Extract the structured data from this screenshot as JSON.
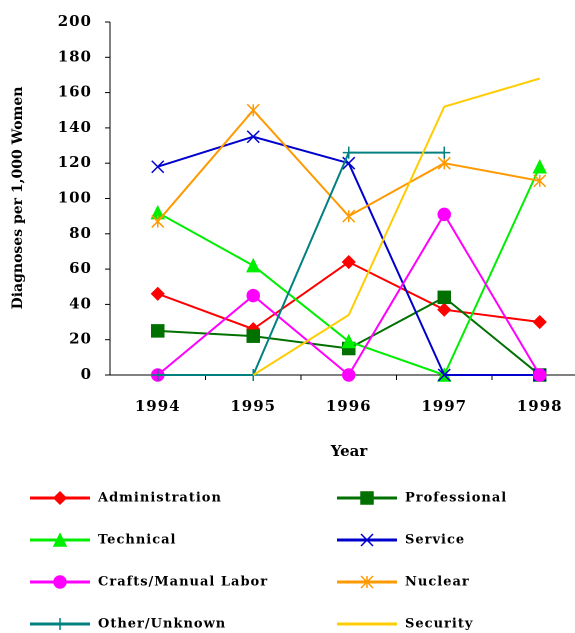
{
  "chart_data": {
    "type": "line",
    "x_label": "Year",
    "y_label": "Diagnoses per 1,000 Women",
    "categories": [
      "1994",
      "1995",
      "1996",
      "1997",
      "1998"
    ],
    "ylim": [
      0,
      200
    ],
    "yticks": [
      0,
      20,
      40,
      60,
      80,
      100,
      120,
      140,
      160,
      180,
      200
    ],
    "grid": false,
    "legend": "bottom",
    "series": [
      {
        "name": "Administration",
        "color": "#ff0000",
        "marker": "diamond",
        "values": [
          46,
          26,
          64,
          37,
          30
        ]
      },
      {
        "name": "Professional",
        "color": "#007000",
        "marker": "square",
        "values": [
          25,
          22,
          15,
          44,
          0
        ]
      },
      {
        "name": "Technical",
        "color": "#00ee00",
        "marker": "triangle",
        "values": [
          92,
          62,
          19,
          0,
          118
        ]
      },
      {
        "name": "Service",
        "color": "#0000cc",
        "marker": "x",
        "values": [
          118,
          135,
          120,
          0,
          0
        ]
      },
      {
        "name": "Crafts/Manual Labor",
        "color": "#ff00ff",
        "marker": "circle",
        "values": [
          0,
          45,
          0,
          91,
          0
        ]
      },
      {
        "name": "Nuclear",
        "color": "#ff9900",
        "marker": "asterisk",
        "values": [
          87,
          150,
          90,
          120,
          110
        ]
      },
      {
        "name": "Other/Unknown",
        "color": "#008080",
        "marker": "plus",
        "values": [
          0,
          0,
          126,
          126,
          null
        ]
      },
      {
        "name": "Security",
        "color": "#ffcc00",
        "marker": "none",
        "values": [
          null,
          0,
          34,
          152,
          168
        ]
      }
    ]
  }
}
